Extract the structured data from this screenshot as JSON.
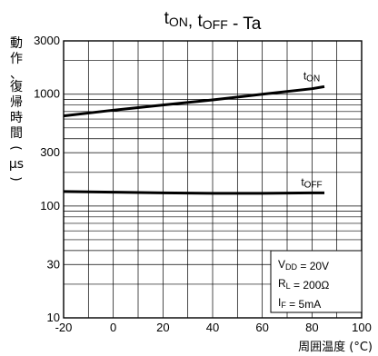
{
  "chart_data": {
    "type": "line",
    "title": {
      "parts": [
        {
          "text": "t"
        },
        {
          "text": "ON",
          "sub": true
        },
        {
          "text": ", t"
        },
        {
          "text": "OFF",
          "sub": true
        },
        {
          "text": " - Ta"
        }
      ]
    },
    "xlabel": "周囲温度 (°C)",
    "ylabel": [
      "動",
      "作",
      "、",
      "復",
      "帰",
      "時",
      "間",
      "(",
      "μs",
      ")"
    ],
    "x_ticks": [
      "-20",
      "0",
      "20",
      "40",
      "60",
      "80",
      "100"
    ],
    "y_ticks": [
      "10",
      "30",
      "100",
      "300",
      "1000",
      "3000"
    ],
    "xlim": [
      -20,
      100
    ],
    "ylim": [
      10,
      3000
    ],
    "yscale": "log",
    "grid": true,
    "series": [
      {
        "name_parts": [
          {
            "text": "t"
          },
          {
            "text": "ON",
            "sub": true
          }
        ],
        "x": [
          -20,
          0,
          20,
          40,
          60,
          80,
          85
        ],
        "y": [
          640,
          720,
          800,
          890,
          1000,
          1120,
          1170
        ]
      },
      {
        "name_parts": [
          {
            "text": "t"
          },
          {
            "text": "OFF",
            "sub": true
          }
        ],
        "x": [
          -20,
          0,
          20,
          40,
          60,
          80,
          85
        ],
        "y": [
          135,
          133,
          131,
          130,
          130,
          131,
          131
        ]
      }
    ],
    "conditions": [
      [
        {
          "text": "V"
        },
        {
          "text": "DD",
          "sub": true
        },
        {
          "text": " = 20V"
        }
      ],
      [
        {
          "text": "R"
        },
        {
          "text": "L",
          "sub": true
        },
        {
          "text": " = 200Ω"
        }
      ],
      [
        {
          "text": "I"
        },
        {
          "text": "F",
          "sub": true
        },
        {
          "text": " = 5mA"
        }
      ]
    ]
  }
}
